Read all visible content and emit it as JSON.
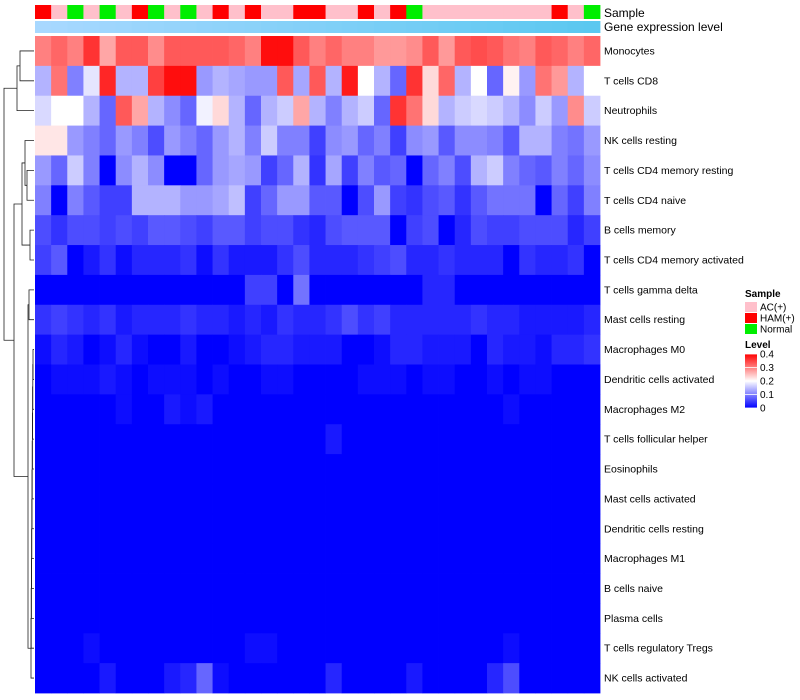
{
  "chart_data": {
    "type": "heatmap",
    "track_labels": {
      "sample": "Sample",
      "expression": "Gene expression level"
    },
    "rows": [
      "Monocytes",
      "T cells CD8",
      "Neutrophils",
      "NK cells resting",
      "T cells CD4 memory resting",
      "T cells CD4 naive",
      "B cells memory",
      "T cells CD4 memory activated",
      "T cells gamma delta",
      "Mast cells resting",
      "Macrophages M0",
      "Dendritic cells activated",
      "Macrophages M2",
      "T cells follicular helper",
      "Eosinophils",
      "Mast cells activated",
      "Dendritic cells resting",
      "Macrophages M1",
      "B cells naive",
      "Plasma cells",
      "T cells regulatory  Tregs",
      "NK cells activated"
    ],
    "sample_groups": [
      "HAM(+)",
      "AC(+)",
      "Normal",
      "AC(+)",
      "Normal",
      "AC(+)",
      "HAM(+)",
      "Normal",
      "AC(+)",
      "Normal",
      "AC(+)",
      "HAM(+)",
      "AC(+)",
      "HAM(+)",
      "AC(+)",
      "AC(+)",
      "HAM(+)",
      "HAM(+)",
      "AC(+)",
      "AC(+)",
      "HAM(+)",
      "AC(+)",
      "HAM(+)",
      "Normal",
      "AC(+)",
      "AC(+)",
      "AC(+)",
      "AC(+)",
      "AC(+)",
      "AC(+)",
      "AC(+)",
      "AC(+)",
      "HAM(+)",
      "AC(+)",
      "Normal"
    ],
    "group_colors": {
      "AC(+)": "#ffc0cb",
      "HAM(+)": "#ff0000",
      "Normal": "#00ee00"
    },
    "expression_colors": [
      "#a8d8ff",
      "#5bc8f0"
    ],
    "values": [
      [
        0.3,
        0.32,
        0.3,
        0.36,
        0.27,
        0.33,
        0.33,
        0.29,
        0.33,
        0.33,
        0.33,
        0.33,
        0.32,
        0.3,
        0.39,
        0.39,
        0.33,
        0.3,
        0.32,
        0.3,
        0.3,
        0.28,
        0.28,
        0.29,
        0.33,
        0.28,
        0.33,
        0.34,
        0.33,
        0.31,
        0.3,
        0.33,
        0.32,
        0.3,
        0.32
      ],
      [
        0.14,
        0.31,
        0.1,
        0.18,
        0.37,
        0.14,
        0.14,
        0.35,
        0.39,
        0.39,
        0.12,
        0.14,
        0.13,
        0.12,
        0.12,
        0.33,
        0.13,
        0.33,
        0.14,
        0.38,
        0.2,
        0.14,
        0.08,
        0.36,
        0.23,
        0.32,
        0.14,
        0.2,
        0.08,
        0.21,
        0.12,
        0.31,
        0.28,
        0.14,
        0.2
      ],
      [
        0.17,
        0.2,
        0.2,
        0.14,
        0.08,
        0.33,
        0.27,
        0.14,
        0.11,
        0.08,
        0.19,
        0.23,
        0.14,
        0.08,
        0.14,
        0.16,
        0.27,
        0.14,
        0.1,
        0.14,
        0.16,
        0.08,
        0.36,
        0.31,
        0.23,
        0.14,
        0.16,
        0.17,
        0.16,
        0.14,
        0.11,
        0.16,
        0.12,
        0.29,
        0.16
      ],
      [
        0.22,
        0.22,
        0.12,
        0.1,
        0.08,
        0.12,
        0.1,
        0.06,
        0.12,
        0.1,
        0.08,
        0.12,
        0.14,
        0.1,
        0.16,
        0.1,
        0.1,
        0.05,
        0.11,
        0.12,
        0.08,
        0.1,
        0.05,
        0.11,
        0.12,
        0.07,
        0.11,
        0.11,
        0.1,
        0.07,
        0.14,
        0.14,
        0.1,
        0.09,
        0.12
      ],
      [
        0.12,
        0.08,
        0.16,
        0.1,
        0.0,
        0.11,
        0.14,
        0.11,
        0.0,
        0.0,
        0.08,
        0.12,
        0.13,
        0.12,
        0.05,
        0.08,
        0.14,
        0.04,
        0.13,
        0.05,
        0.1,
        0.07,
        0.08,
        0.0,
        0.08,
        0.1,
        0.06,
        0.14,
        0.16,
        0.1,
        0.08,
        0.07,
        0.1,
        0.08,
        0.11
      ],
      [
        0.1,
        0.0,
        0.1,
        0.07,
        0.05,
        0.05,
        0.14,
        0.14,
        0.14,
        0.12,
        0.12,
        0.13,
        0.15,
        0.05,
        0.08,
        0.12,
        0.12,
        0.07,
        0.07,
        0.0,
        0.06,
        0.12,
        0.05,
        0.04,
        0.06,
        0.07,
        0.04,
        0.07,
        0.09,
        0.09,
        0.09,
        0.0,
        0.08,
        0.05,
        0.1
      ],
      [
        0.06,
        0.04,
        0.06,
        0.06,
        0.05,
        0.06,
        0.05,
        0.07,
        0.07,
        0.06,
        0.05,
        0.07,
        0.07,
        0.05,
        0.06,
        0.06,
        0.04,
        0.03,
        0.06,
        0.07,
        0.07,
        0.07,
        0.0,
        0.05,
        0.06,
        0.0,
        0.03,
        0.06,
        0.05,
        0.05,
        0.06,
        0.06,
        0.06,
        0.03,
        0.05
      ],
      [
        0.05,
        0.07,
        0.0,
        0.02,
        0.04,
        0.01,
        0.03,
        0.03,
        0.03,
        0.04,
        0.01,
        0.04,
        0.02,
        0.02,
        0.02,
        0.04,
        0.06,
        0.03,
        0.03,
        0.03,
        0.04,
        0.05,
        0.06,
        0.03,
        0.03,
        0.04,
        0.03,
        0.03,
        0.03,
        0.0,
        0.04,
        0.03,
        0.03,
        0.04,
        0.0
      ],
      [
        0.0,
        0.0,
        0.0,
        0.0,
        0.0,
        0.0,
        0.0,
        0.0,
        0.0,
        0.0,
        0.0,
        0.0,
        0.0,
        0.05,
        0.05,
        0.0,
        0.09,
        0.0,
        0.0,
        0.0,
        0.0,
        0.0,
        0.0,
        0.0,
        0.03,
        0.03,
        0.0,
        0.0,
        0.0,
        0.0,
        0.0,
        0.0,
        0.0,
        0.0,
        0.0
      ],
      [
        0.04,
        0.05,
        0.04,
        0.03,
        0.04,
        0.02,
        0.03,
        0.03,
        0.03,
        0.04,
        0.03,
        0.03,
        0.02,
        0.03,
        0.02,
        0.04,
        0.03,
        0.03,
        0.04,
        0.06,
        0.04,
        0.05,
        0.03,
        0.03,
        0.03,
        0.03,
        0.03,
        0.04,
        0.03,
        0.03,
        0.02,
        0.02,
        0.02,
        0.02,
        0.03
      ],
      [
        0.01,
        0.03,
        0.02,
        0.0,
        0.01,
        0.03,
        0.01,
        0.0,
        0.0,
        0.02,
        0.0,
        0.0,
        0.01,
        0.02,
        0.03,
        0.03,
        0.02,
        0.02,
        0.02,
        0.0,
        0.0,
        0.01,
        0.03,
        0.03,
        0.02,
        0.02,
        0.02,
        0.0,
        0.03,
        0.02,
        0.02,
        0.01,
        0.03,
        0.03,
        0.04
      ],
      [
        0.0,
        0.01,
        0.01,
        0.01,
        0.02,
        0.01,
        0.0,
        0.01,
        0.01,
        0.01,
        0.0,
        0.01,
        0.0,
        0.0,
        0.01,
        0.01,
        0.0,
        0.0,
        0.0,
        0.0,
        0.01,
        0.01,
        0.01,
        0.0,
        0.01,
        0.01,
        0.0,
        0.0,
        0.01,
        0.0,
        0.01,
        0.01,
        0.0,
        0.0,
        0.0
      ],
      [
        0.0,
        0.0,
        0.0,
        0.0,
        0.0,
        0.01,
        0.0,
        0.0,
        0.02,
        0.01,
        0.02,
        0.0,
        0.0,
        0.0,
        0.0,
        0.0,
        0.0,
        0.0,
        0.0,
        0.0,
        0.0,
        0.0,
        0.0,
        0.0,
        0.0,
        0.0,
        0.0,
        0.0,
        0.0,
        0.01,
        0.0,
        0.0,
        0.0,
        0.0,
        0.0
      ],
      [
        0.0,
        0.0,
        0.0,
        0.0,
        0.0,
        0.0,
        0.0,
        0.0,
        0.0,
        0.0,
        0.0,
        0.0,
        0.0,
        0.0,
        0.0,
        0.0,
        0.0,
        0.0,
        0.02,
        0.0,
        0.0,
        0.0,
        0.0,
        0.0,
        0.0,
        0.0,
        0.0,
        0.0,
        0.0,
        0.0,
        0.0,
        0.0,
        0.0,
        0.0,
        0.0
      ],
      [
        0.0,
        0.0,
        0.0,
        0.0,
        0.0,
        0.0,
        0.0,
        0.0,
        0.0,
        0.0,
        0.0,
        0.0,
        0.0,
        0.0,
        0.0,
        0.0,
        0.0,
        0.0,
        0.0,
        0.0,
        0.0,
        0.0,
        0.0,
        0.0,
        0.0,
        0.0,
        0.0,
        0.0,
        0.0,
        0.0,
        0.0,
        0.0,
        0.0,
        0.0,
        0.0
      ],
      [
        0.0,
        0.0,
        0.0,
        0.0,
        0.0,
        0.0,
        0.0,
        0.0,
        0.0,
        0.0,
        0.0,
        0.0,
        0.0,
        0.0,
        0.0,
        0.0,
        0.0,
        0.0,
        0.0,
        0.0,
        0.0,
        0.0,
        0.0,
        0.0,
        0.0,
        0.0,
        0.0,
        0.0,
        0.0,
        0.0,
        0.0,
        0.0,
        0.0,
        0.0,
        0.0
      ],
      [
        0.0,
        0.0,
        0.0,
        0.0,
        0.0,
        0.0,
        0.0,
        0.0,
        0.0,
        0.0,
        0.0,
        0.0,
        0.0,
        0.0,
        0.0,
        0.0,
        0.0,
        0.0,
        0.0,
        0.0,
        0.0,
        0.0,
        0.0,
        0.0,
        0.0,
        0.0,
        0.0,
        0.0,
        0.0,
        0.0,
        0.0,
        0.0,
        0.0,
        0.0,
        0.0
      ],
      [
        0.0,
        0.0,
        0.0,
        0.0,
        0.0,
        0.0,
        0.0,
        0.0,
        0.0,
        0.0,
        0.0,
        0.0,
        0.0,
        0.0,
        0.0,
        0.0,
        0.0,
        0.0,
        0.0,
        0.0,
        0.0,
        0.0,
        0.0,
        0.0,
        0.0,
        0.0,
        0.0,
        0.0,
        0.0,
        0.0,
        0.0,
        0.0,
        0.0,
        0.0,
        0.0
      ],
      [
        0.0,
        0.0,
        0.0,
        0.0,
        0.0,
        0.0,
        0.0,
        0.0,
        0.0,
        0.0,
        0.0,
        0.0,
        0.0,
        0.0,
        0.0,
        0.0,
        0.0,
        0.0,
        0.0,
        0.0,
        0.0,
        0.0,
        0.0,
        0.0,
        0.0,
        0.0,
        0.0,
        0.0,
        0.0,
        0.0,
        0.0,
        0.0,
        0.0,
        0.0,
        0.0
      ],
      [
        0.0,
        0.0,
        0.0,
        0.0,
        0.0,
        0.0,
        0.0,
        0.0,
        0.0,
        0.0,
        0.0,
        0.0,
        0.0,
        0.0,
        0.0,
        0.0,
        0.0,
        0.0,
        0.0,
        0.0,
        0.0,
        0.0,
        0.0,
        0.0,
        0.0,
        0.0,
        0.0,
        0.0,
        0.0,
        0.0,
        0.0,
        0.0,
        0.0,
        0.0,
        0.0
      ],
      [
        0.0,
        0.0,
        0.0,
        0.01,
        0.0,
        0.0,
        0.0,
        0.0,
        0.0,
        0.0,
        0.0,
        0.0,
        0.0,
        0.01,
        0.01,
        0.0,
        0.0,
        0.0,
        0.0,
        0.0,
        0.0,
        0.0,
        0.0,
        0.0,
        0.0,
        0.0,
        0.0,
        0.0,
        0.0,
        0.01,
        0.0,
        0.0,
        0.0,
        0.0,
        0.0
      ],
      [
        0.0,
        0.0,
        0.0,
        0.0,
        0.02,
        0.0,
        0.0,
        0.0,
        0.02,
        0.03,
        0.08,
        0.01,
        0.0,
        0.0,
        0.0,
        0.0,
        0.0,
        0.0,
        0.03,
        0.0,
        0.0,
        0.0,
        0.0,
        0.02,
        0.0,
        0.0,
        0.0,
        0.0,
        0.03,
        0.06,
        0.0,
        0.0,
        0.0,
        0.0,
        0.0
      ]
    ],
    "legend": {
      "sample_title": "Sample",
      "sample_entries": [
        "AC(+)",
        "HAM(+)",
        "Normal"
      ],
      "level_title": "Level",
      "level_ticks": [
        0.4,
        0.3,
        0.2,
        0.1,
        0
      ],
      "level_tick_labels": [
        "0.4",
        "0.3",
        "0.2",
        "0.1",
        "0"
      ],
      "level_range": [
        0,
        0.4
      ],
      "level_colors": [
        "#0000ff",
        "#ffffff",
        "#ff0000"
      ]
    }
  }
}
